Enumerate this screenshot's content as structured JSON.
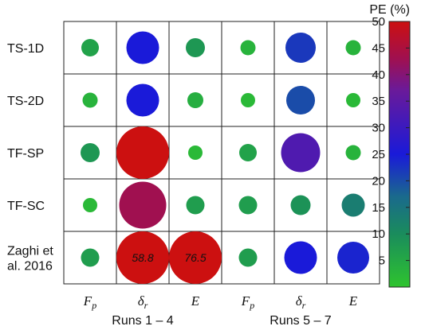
{
  "chart_data": {
    "type": "bubble-matrix",
    "rows": [
      "TS-1D",
      "TS-2D",
      "TF-SP",
      "TF-SC",
      "Zaghi et al. 2016"
    ],
    "row_lines": [
      [
        "TS-1D"
      ],
      [
        "TS-2D"
      ],
      [
        "TF-SP"
      ],
      [
        "TF-SC"
      ],
      [
        "Zaghi et",
        "al. 2016"
      ]
    ],
    "columns": [
      {
        "symbol": "F",
        "sub": "p"
      },
      {
        "symbol": "δ",
        "sub": "r"
      },
      {
        "symbol": "E",
        "sub": ""
      },
      {
        "symbol": "F",
        "sub": "p"
      },
      {
        "symbol": "δ",
        "sub": "r"
      },
      {
        "symbol": "E",
        "sub": ""
      }
    ],
    "groups": [
      {
        "label": "Runs 1 – 4",
        "columns": [
          0,
          1,
          2
        ]
      },
      {
        "label": "Runs 5 – 7",
        "columns": [
          3,
          4,
          5
        ]
      }
    ],
    "values": [
      [
        6,
        25,
        8,
        3,
        22,
        3
      ],
      [
        3,
        25,
        4,
        2,
        20,
        2
      ],
      [
        8,
        50,
        2,
        6,
        33,
        3
      ],
      [
        2,
        43,
        7,
        7,
        9,
        13
      ],
      [
        7,
        58.8,
        76.5,
        7,
        25,
        24
      ]
    ],
    "value_labels": [
      [
        "",
        "",
        "",
        "",
        "",
        ""
      ],
      [
        "",
        "",
        "",
        "",
        "",
        ""
      ],
      [
        "",
        "",
        "",
        "",
        "",
        ""
      ],
      [
        "",
        "",
        "",
        "",
        "",
        ""
      ],
      [
        "",
        "58.8",
        "76.5",
        "",
        "",
        ""
      ]
    ],
    "colorbar": {
      "title": "PE (%)",
      "min": 0,
      "max": 50,
      "ticks": [
        5,
        10,
        15,
        20,
        25,
        30,
        35,
        40,
        45,
        50
      ],
      "stops": [
        {
          "v": 0,
          "color": "#2ec42e"
        },
        {
          "v": 10,
          "color": "#1a8c5c"
        },
        {
          "v": 17,
          "color": "#1a6a8c"
        },
        {
          "v": 25,
          "color": "#1a1ad9"
        },
        {
          "v": 37,
          "color": "#6a1a9a"
        },
        {
          "v": 43,
          "color": "#a01050"
        },
        {
          "v": 50,
          "color": "#cc1010"
        }
      ]
    }
  }
}
